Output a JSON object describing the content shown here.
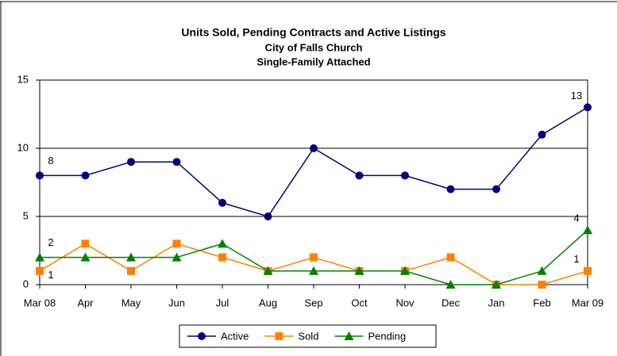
{
  "chart_data": {
    "type": "line",
    "title": "Units Sold, Pending Contracts and Active Listings",
    "subtitle": [
      "City of Falls Church",
      "Single-Family Attached"
    ],
    "categories": [
      "Mar 08",
      "Apr",
      "May",
      "Jun",
      "Jul",
      "Aug",
      "Sep",
      "Oct",
      "Nov",
      "Dec",
      "Jan",
      "Feb",
      "Mar 09"
    ],
    "series": [
      {
        "name": "Active",
        "color": "#000080",
        "marker": "circle",
        "values": [
          8,
          8,
          9,
          9,
          6,
          5,
          10,
          8,
          8,
          7,
          7,
          11,
          13
        ]
      },
      {
        "name": "Sold",
        "color": "#ff8000",
        "marker": "square",
        "values": [
          1,
          3,
          1,
          3,
          2,
          1,
          2,
          1,
          1,
          2,
          0,
          0,
          1
        ]
      },
      {
        "name": "Pending",
        "color": "#008000",
        "marker": "triangle",
        "values": [
          2,
          2,
          2,
          2,
          3,
          1,
          1,
          1,
          1,
          0,
          0,
          1,
          4
        ]
      }
    ],
    "data_labels": "ends",
    "ylim": [
      0,
      15
    ],
    "yticks": [
      0,
      5,
      10,
      15
    ],
    "grid": true,
    "legend": "bottom"
  }
}
